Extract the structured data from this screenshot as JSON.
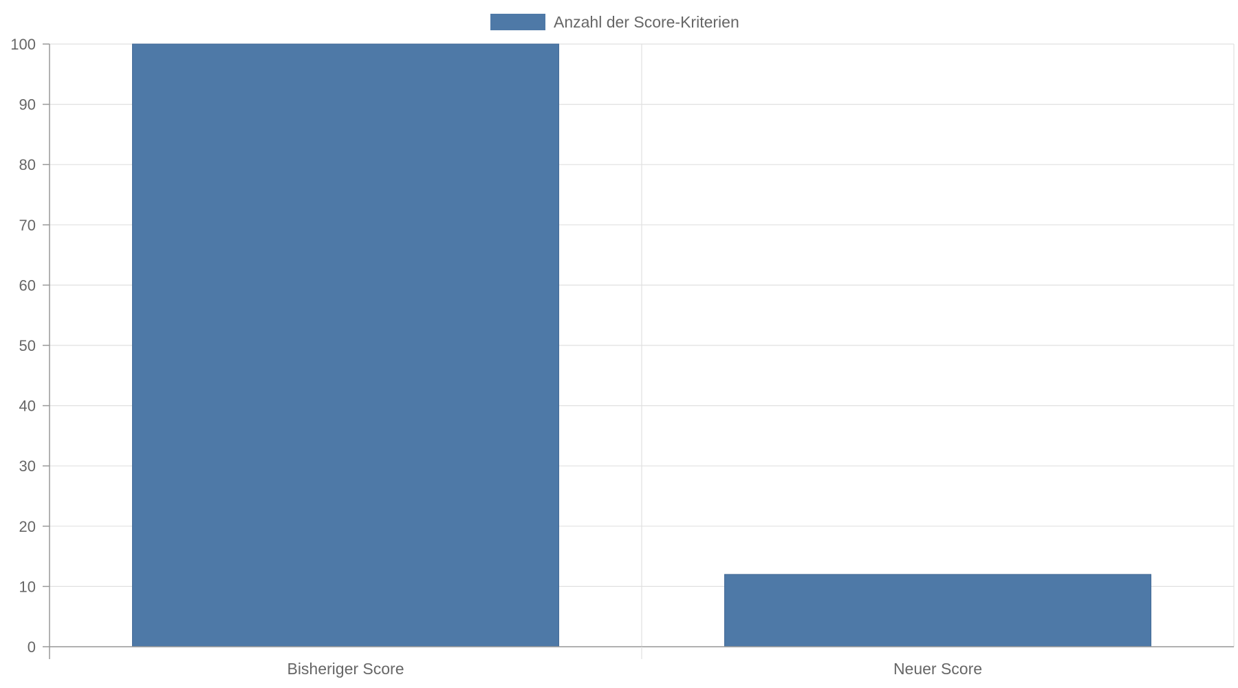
{
  "chart_data": {
    "type": "bar",
    "categories": [
      "Bisheriger Score",
      "Neuer Score"
    ],
    "series": [
      {
        "name": "Anzahl der Score-Kriterien",
        "values": [
          100,
          12
        ],
        "color": "#4e79a7"
      }
    ],
    "title": "",
    "xlabel": "",
    "ylabel": "",
    "ylim": [
      0,
      100
    ],
    "yticks": [
      0,
      10,
      20,
      30,
      40,
      50,
      60,
      70,
      80,
      90,
      100
    ],
    "grid": true,
    "legend_position": "top"
  }
}
